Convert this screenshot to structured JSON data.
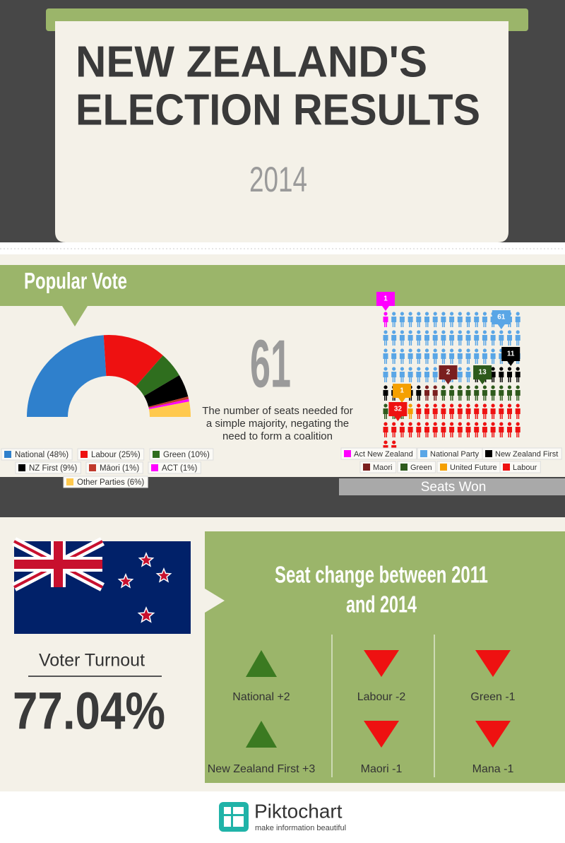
{
  "header": {
    "title": [
      "NEW ZEALAND'S",
      "ELECTION RESULTS"
    ],
    "year": "2014"
  },
  "chart_data": [
    {
      "type": "half-donut",
      "title": "Popular Vote",
      "categories": [
        "National (48%)",
        "Labour (25%)",
        "Green (10%)",
        "NZ First (9%)",
        "Māori (1%)",
        "ACT (1%)",
        "Other Parties (6%)"
      ],
      "values": [
        48,
        25,
        10,
        9,
        1,
        1,
        6
      ],
      "colors": [
        "#2f80cc",
        "#ee1111",
        "#2f6e1e",
        "#000000",
        "#c0392b",
        "#ff00ff",
        "#ffc94d"
      ]
    },
    {
      "type": "pictogram",
      "title": "Seats Won",
      "categories": [
        "Act New Zealand",
        "National Party",
        "New Zealand First",
        "Maori",
        "Green",
        "United Future",
        "Labour"
      ],
      "values": [
        1,
        61,
        11,
        2,
        13,
        1,
        32
      ],
      "colors": [
        "#ff00ff",
        "#5aa6e6",
        "#000000",
        "#7a1f1f",
        "#2e5a1c",
        "#f5a000",
        "#ee1111"
      ]
    }
  ],
  "majority": {
    "value": 61,
    "caption": [
      "The number of seats needed for",
      "a simple majority, negating the",
      "need to form a coalition"
    ]
  },
  "turnout": {
    "label": "Voter Turnout",
    "value": "77.04%"
  },
  "seat_change": {
    "title": [
      "Seat change between 2011",
      "and 2014"
    ],
    "items": [
      {
        "label": "National +2",
        "direction": "up"
      },
      {
        "label": "Labour -2",
        "direction": "down"
      },
      {
        "label": "Green -1",
        "direction": "down"
      },
      {
        "label": "New Zealand First +3",
        "direction": "up"
      },
      {
        "label": "Maori -1",
        "direction": "down"
      },
      {
        "label": "Mana -1",
        "direction": "down"
      }
    ]
  },
  "footer": {
    "brand": "Piktochart",
    "tagline": "make information beautiful"
  }
}
